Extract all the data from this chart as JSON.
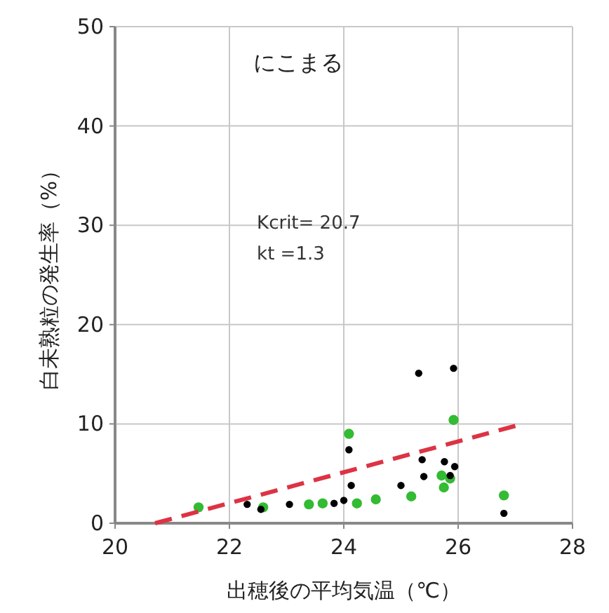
{
  "chart_data": {
    "type": "scatter",
    "title": "にこまる",
    "xlabel": "出穂後の平均気温（℃）",
    "ylabel": "白未熟粒の発生率（%）",
    "annotations": [
      "Kcrit= 20.7",
      "kt =1.3"
    ],
    "xlim": [
      20,
      28
    ],
    "xticks": [
      20,
      22,
      24,
      26,
      28
    ],
    "ylim": [
      0,
      50
    ],
    "yticks": [
      0,
      10,
      20,
      30,
      40,
      50
    ],
    "grid": true,
    "marker": "circle",
    "series": [
      {
        "color": "#33bb33",
        "x": [
          24.09,
          25.92,
          26.8,
          25.18,
          24.56,
          24.23,
          23.63,
          23.39,
          25.71,
          25.75,
          25.86,
          21.46,
          22.59
        ],
        "values": [
          9.0,
          10.4,
          2.8,
          2.7,
          2.4,
          2.0,
          2.0,
          1.9,
          4.8,
          3.6,
          4.5,
          1.6,
          1.6
        ]
      },
      {
        "color": "#000000",
        "x": [
          25.31,
          25.92,
          24.09,
          25.37,
          25.76,
          25.94,
          25.4,
          25.86,
          25.0,
          24.13,
          22.31,
          23.05,
          23.83,
          24.0,
          26.8,
          22.55
        ],
        "values": [
          15.1,
          15.6,
          7.4,
          6.4,
          6.2,
          5.7,
          4.7,
          4.8,
          3.8,
          3.8,
          1.9,
          1.9,
          2.0,
          2.3,
          1.0,
          1.4
        ]
      },
      {
        "type": "line",
        "color": "#dd3344",
        "line_style": "dashed",
        "marker": "none",
        "x": [
          20.7,
          27.0
        ],
        "values": [
          0,
          9.8
        ]
      }
    ]
  }
}
